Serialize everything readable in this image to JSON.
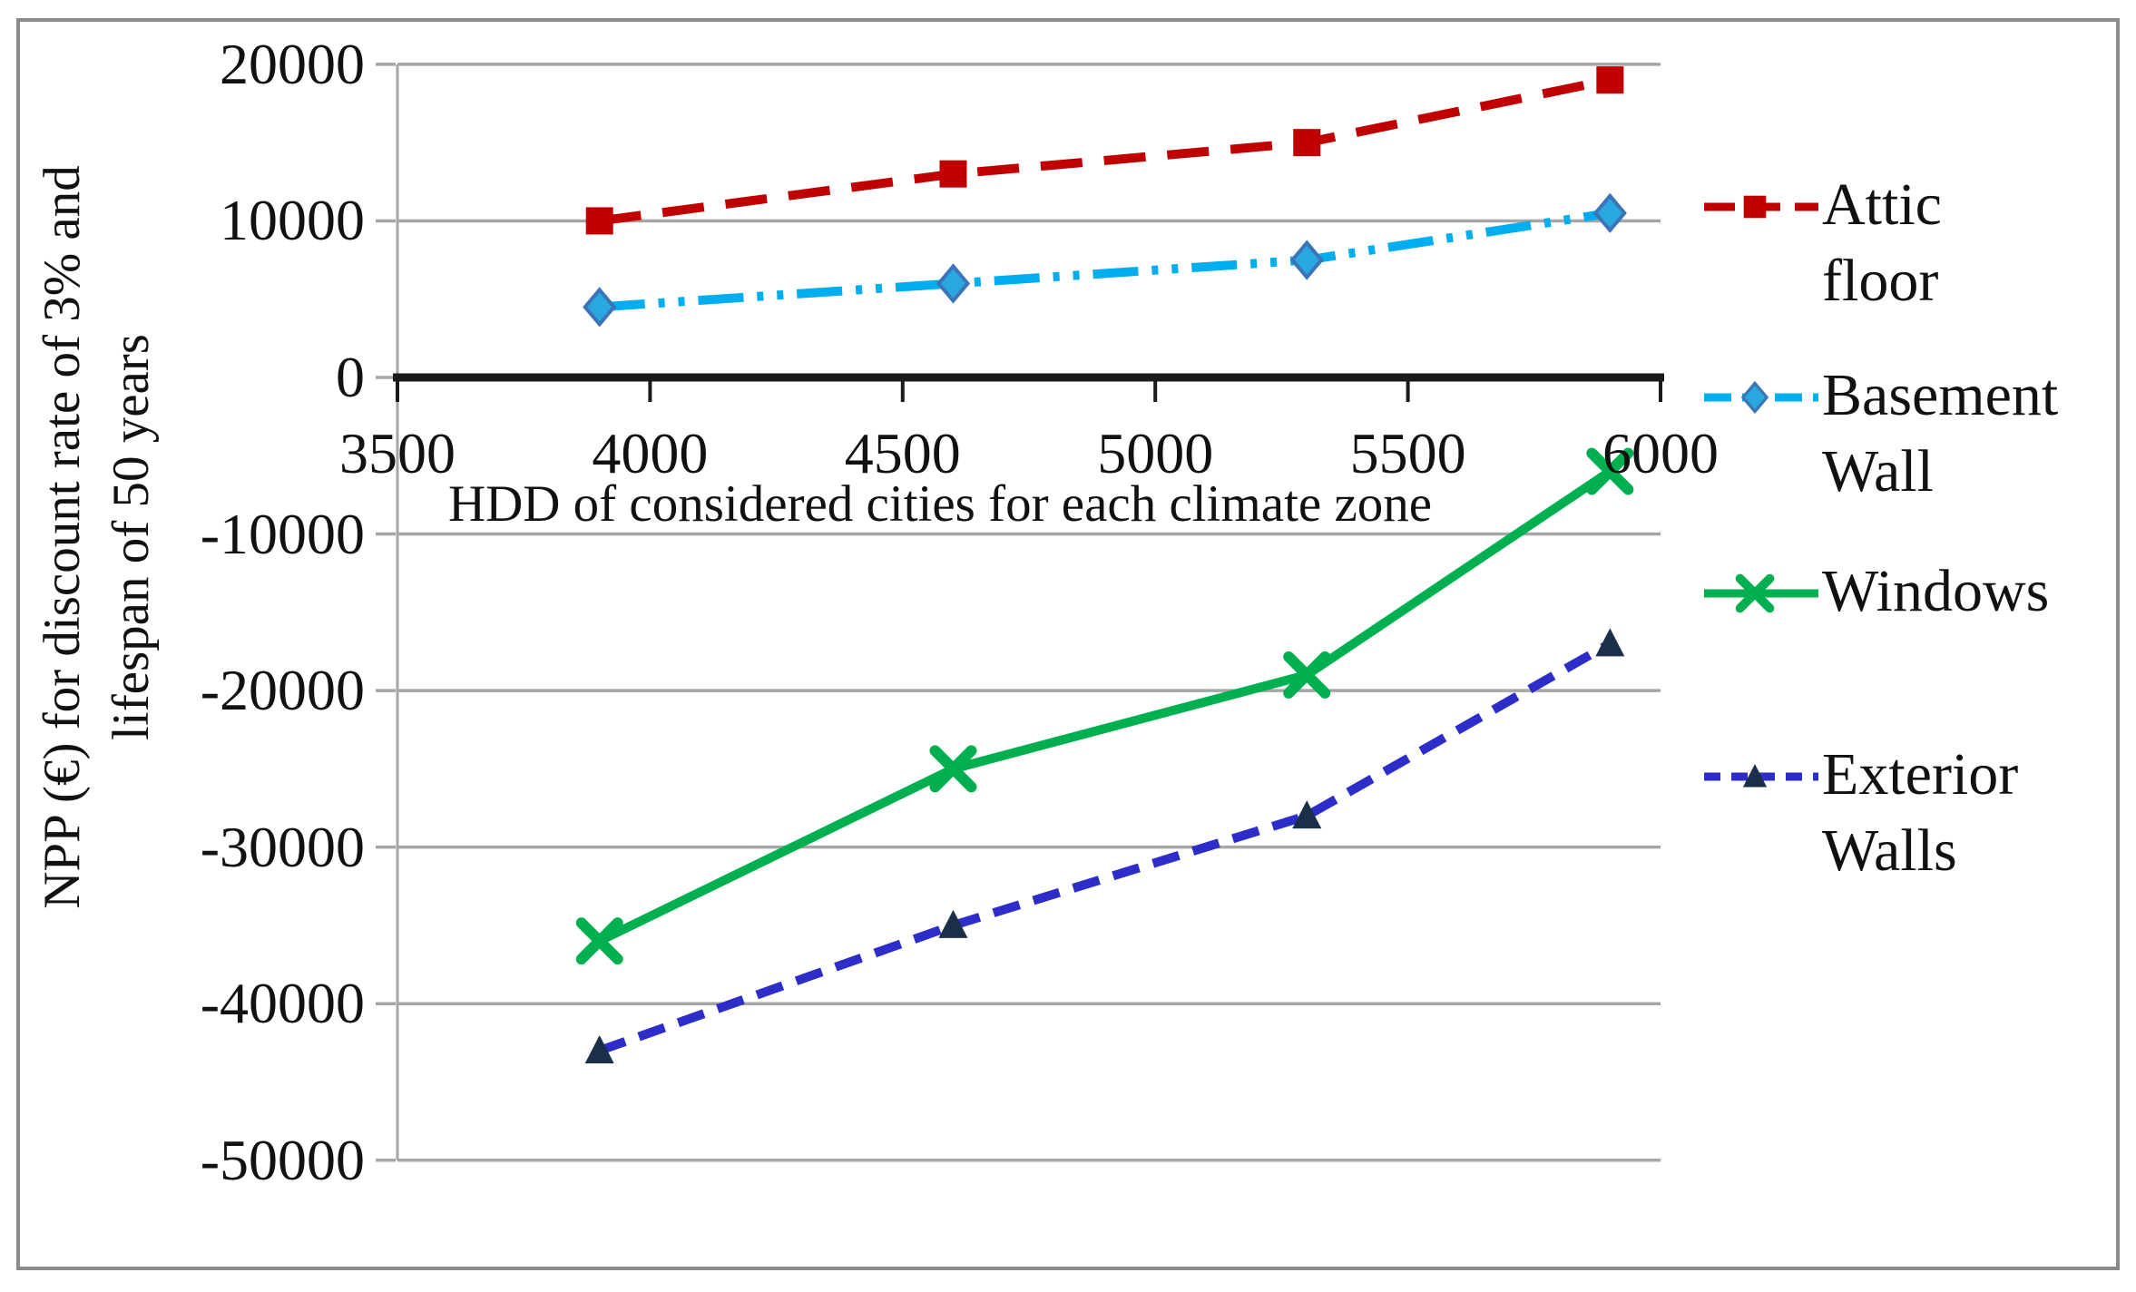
{
  "figure": {
    "background": "#FFFFFF",
    "border_color": "#8A8A8A"
  },
  "chart_data": {
    "type": "line",
    "title": "",
    "xlabel": "HDD of considered cities for each climate zone",
    "ylabel_lines": [
      "NPP (€) for discount rate of 3% and",
      "lifespan of 50 years"
    ],
    "x": [
      3900,
      4600,
      5300,
      5900
    ],
    "xticks": [
      3500,
      4000,
      4500,
      5000,
      5500,
      6000
    ],
    "yticks": [
      20000,
      10000,
      0,
      -10000,
      -20000,
      -30000,
      -40000,
      -50000
    ],
    "xlim": [
      3500,
      6000
    ],
    "ylim": [
      -50000,
      20000
    ],
    "grid": true,
    "legend_position": "right",
    "colors": {
      "gridline": "#A6A6A6",
      "zero_axis": "#1A1A1A",
      "axis_line": "#A6A6A6"
    },
    "series": [
      {
        "name": "Attic floor",
        "legend_lines": [
          "Attic floor"
        ],
        "values": [
          10000,
          13000,
          15000,
          19000
        ],
        "color": "#C00000",
        "line_style": "long-dash",
        "marker": "square",
        "marker_color": "#C00000"
      },
      {
        "name": "Basement Wall",
        "legend_lines": [
          "Basement",
          "Wall"
        ],
        "values": [
          4500,
          6000,
          7500,
          10500
        ],
        "color": "#00AEEF",
        "line_style": "dash-dot-dot",
        "marker": "diamond",
        "marker_color": "#29A8E0",
        "marker_stroke": "#3C74B8"
      },
      {
        "name": "Windows",
        "legend_lines": [
          "Windows"
        ],
        "values": [
          -36000,
          -25000,
          -19000,
          -6000
        ],
        "color": "#00B050",
        "line_style": "solid",
        "marker": "x",
        "marker_color": "#00B050"
      },
      {
        "name": "Exterior Walls",
        "legend_lines": [
          "Exterior",
          "Walls"
        ],
        "values": [
          -43000,
          -35000,
          -28000,
          -17000
        ],
        "color": "#2D2DC9",
        "line_style": "dashed",
        "marker": "triangle",
        "marker_color": "#1B3048"
      }
    ]
  }
}
